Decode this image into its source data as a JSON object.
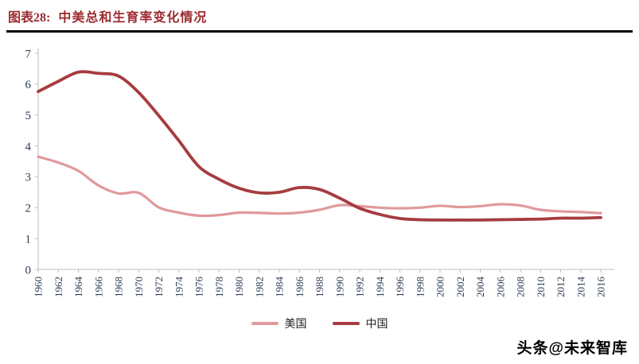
{
  "header": {
    "figure_label": "图表28:",
    "figure_title": "中美总和生育率变化情况"
  },
  "colors": {
    "title": "#9D2A2F",
    "rule": "#000000"
  },
  "chart_data": {
    "type": "line",
    "title": "中美总和生育率变化情况",
    "xlabel": "",
    "ylabel": "",
    "ylim": [
      0,
      7
    ],
    "yticks": [
      0,
      1,
      2,
      3,
      4,
      5,
      6,
      7
    ],
    "grid": false,
    "legend_position": "bottom",
    "axis_label_color": "#2F3E54",
    "axis_line_color": "#BFBFBF",
    "x": [
      1960,
      1962,
      1964,
      1966,
      1968,
      1970,
      1972,
      1974,
      1976,
      1978,
      1980,
      1982,
      1984,
      1986,
      1988,
      1990,
      1992,
      1994,
      1996,
      1998,
      2000,
      2002,
      2004,
      2006,
      2008,
      2010,
      2012,
      2014,
      2016
    ],
    "series": [
      {
        "name": "美国",
        "color": "#E0999C",
        "stroke_width": 3.2,
        "values": [
          3.65,
          3.46,
          3.19,
          2.72,
          2.46,
          2.48,
          2.01,
          1.84,
          1.74,
          1.76,
          1.84,
          1.83,
          1.81,
          1.84,
          1.93,
          2.08,
          2.05,
          2.0,
          1.98,
          2.0,
          2.06,
          2.02,
          2.05,
          2.11,
          2.07,
          1.93,
          1.88,
          1.86,
          1.82
        ]
      },
      {
        "name": "中国",
        "color": "#A63C40",
        "stroke_width": 3.8,
        "values": [
          5.76,
          6.09,
          6.39,
          6.35,
          6.26,
          5.73,
          4.98,
          4.17,
          3.33,
          2.92,
          2.63,
          2.48,
          2.5,
          2.65,
          2.59,
          2.31,
          1.98,
          1.78,
          1.65,
          1.61,
          1.6,
          1.6,
          1.6,
          1.61,
          1.62,
          1.63,
          1.66,
          1.66,
          1.68
        ]
      }
    ]
  },
  "footer": {
    "watermark": "头条@未来智库"
  }
}
